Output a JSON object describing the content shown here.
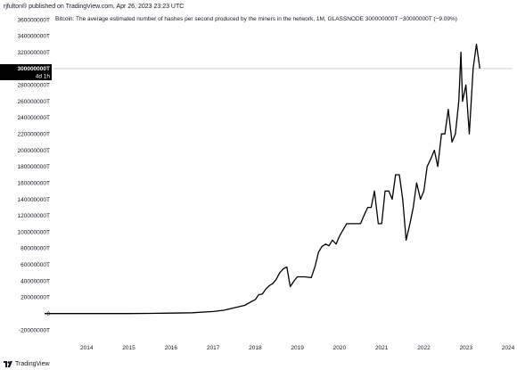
{
  "header": {
    "publisher_line": "rjfulton® published on TradingView.com, Apr 26, 2023 23:23 UTC"
  },
  "legend": {
    "text": "Bitcoin: The average estimated number of hashes per second produced by the miners in the network, 1M, GLASSNODE  300000000T  −30000000T (−9.09%)"
  },
  "price_label": {
    "value": "300000000T",
    "countdown": "4d 1h"
  },
  "footer": {
    "brand": "TradingView",
    "logo_icon": "tradingview-logo-icon"
  },
  "colors": {
    "line": "#000000",
    "price_label_bg": "#000000",
    "price_label_text": "#ffffff",
    "current_value_line": "#c8c8c8"
  },
  "chart_data": {
    "type": "line",
    "title": "",
    "xlabel": "",
    "ylabel": "",
    "ylim": [
      -20000000,
      360000000
    ],
    "xlim": [
      2013.0,
      2024.0
    ],
    "y_tick_labels": [
      {
        "v": 360000000,
        "label": "360000000T"
      },
      {
        "v": 340000000,
        "label": "340000000T"
      },
      {
        "v": 320000000,
        "label": "320000000T"
      },
      {
        "v": 280000000,
        "label": "280000000T"
      },
      {
        "v": 260000000,
        "label": "260000000T"
      },
      {
        "v": 240000000,
        "label": "240000000T"
      },
      {
        "v": 220000000,
        "label": "220000000T"
      },
      {
        "v": 200000000,
        "label": "200000000T"
      },
      {
        "v": 180000000,
        "label": "180000000T"
      },
      {
        "v": 160000000,
        "label": "160000000T"
      },
      {
        "v": 140000000,
        "label": "140000000T"
      },
      {
        "v": 120000000,
        "label": "120000000T"
      },
      {
        "v": 100000000,
        "label": "100000000T"
      },
      {
        "v": 80000000,
        "label": "80000000T"
      },
      {
        "v": 60000000,
        "label": "60000000T"
      },
      {
        "v": 40000000,
        "label": "40000000T"
      },
      {
        "v": 20000000,
        "label": "20000000T"
      },
      {
        "v": 0,
        "label": "0"
      },
      {
        "v": -20000000,
        "label": "-20000000T"
      }
    ],
    "x_tick_labels": [
      {
        "v": 2014,
        "label": "2014"
      },
      {
        "v": 2015,
        "label": "2015"
      },
      {
        "v": 2016,
        "label": "2016"
      },
      {
        "v": 2017,
        "label": "2017"
      },
      {
        "v": 2018,
        "label": "2018"
      },
      {
        "v": 2019,
        "label": "2019"
      },
      {
        "v": 2020,
        "label": "2020"
      },
      {
        "v": 2021,
        "label": "2021"
      },
      {
        "v": 2022,
        "label": "2022"
      },
      {
        "v": 2023,
        "label": "2023"
      },
      {
        "v": 2024,
        "label": "2024"
      }
    ],
    "current_value": 300000000,
    "series": [
      {
        "points": [
          [
            2013.0,
            0
          ],
          [
            2014.0,
            0
          ],
          [
            2015.0,
            0
          ],
          [
            2015.5,
            200000
          ],
          [
            2016.0,
            500000
          ],
          [
            2016.5,
            1000000
          ],
          [
            2017.0,
            2500000
          ],
          [
            2017.25,
            4000000
          ],
          [
            2017.5,
            7000000
          ],
          [
            2017.75,
            10000000
          ],
          [
            2017.92,
            15000000
          ],
          [
            2018.0,
            17000000
          ],
          [
            2018.08,
            23000000
          ],
          [
            2018.17,
            24000000
          ],
          [
            2018.25,
            30000000
          ],
          [
            2018.33,
            34000000
          ],
          [
            2018.42,
            37000000
          ],
          [
            2018.5,
            42000000
          ],
          [
            2018.58,
            50000000
          ],
          [
            2018.67,
            55000000
          ],
          [
            2018.75,
            57000000
          ],
          [
            2018.83,
            33000000
          ],
          [
            2018.92,
            40000000
          ],
          [
            2019.0,
            45000000
          ],
          [
            2019.17,
            45000000
          ],
          [
            2019.33,
            44000000
          ],
          [
            2019.42,
            58000000
          ],
          [
            2019.5,
            75000000
          ],
          [
            2019.58,
            82000000
          ],
          [
            2019.67,
            85000000
          ],
          [
            2019.75,
            83000000
          ],
          [
            2019.83,
            90000000
          ],
          [
            2019.92,
            85000000
          ],
          [
            2020.0,
            95000000
          ],
          [
            2020.17,
            110000000
          ],
          [
            2020.33,
            110000000
          ],
          [
            2020.5,
            110000000
          ],
          [
            2020.58,
            120000000
          ],
          [
            2020.67,
            130000000
          ],
          [
            2020.75,
            130000000
          ],
          [
            2020.83,
            150000000
          ],
          [
            2020.92,
            110000000
          ],
          [
            2021.0,
            110000000
          ],
          [
            2021.08,
            150000000
          ],
          [
            2021.17,
            150000000
          ],
          [
            2021.25,
            140000000
          ],
          [
            2021.33,
            170000000
          ],
          [
            2021.42,
            170000000
          ],
          [
            2021.5,
            140000000
          ],
          [
            2021.58,
            90000000
          ],
          [
            2021.67,
            110000000
          ],
          [
            2021.75,
            130000000
          ],
          [
            2021.83,
            160000000
          ],
          [
            2021.92,
            140000000
          ],
          [
            2022.0,
            150000000
          ],
          [
            2022.08,
            180000000
          ],
          [
            2022.17,
            190000000
          ],
          [
            2022.25,
            200000000
          ],
          [
            2022.33,
            180000000
          ],
          [
            2022.42,
            220000000
          ],
          [
            2022.5,
            220000000
          ],
          [
            2022.58,
            250000000
          ],
          [
            2022.67,
            210000000
          ],
          [
            2022.75,
            220000000
          ],
          [
            2022.83,
            260000000
          ],
          [
            2022.88,
            320000000
          ],
          [
            2022.92,
            260000000
          ],
          [
            2023.0,
            280000000
          ],
          [
            2023.08,
            220000000
          ],
          [
            2023.17,
            300000000
          ],
          [
            2023.25,
            330000000
          ],
          [
            2023.33,
            300000000
          ]
        ]
      }
    ]
  }
}
